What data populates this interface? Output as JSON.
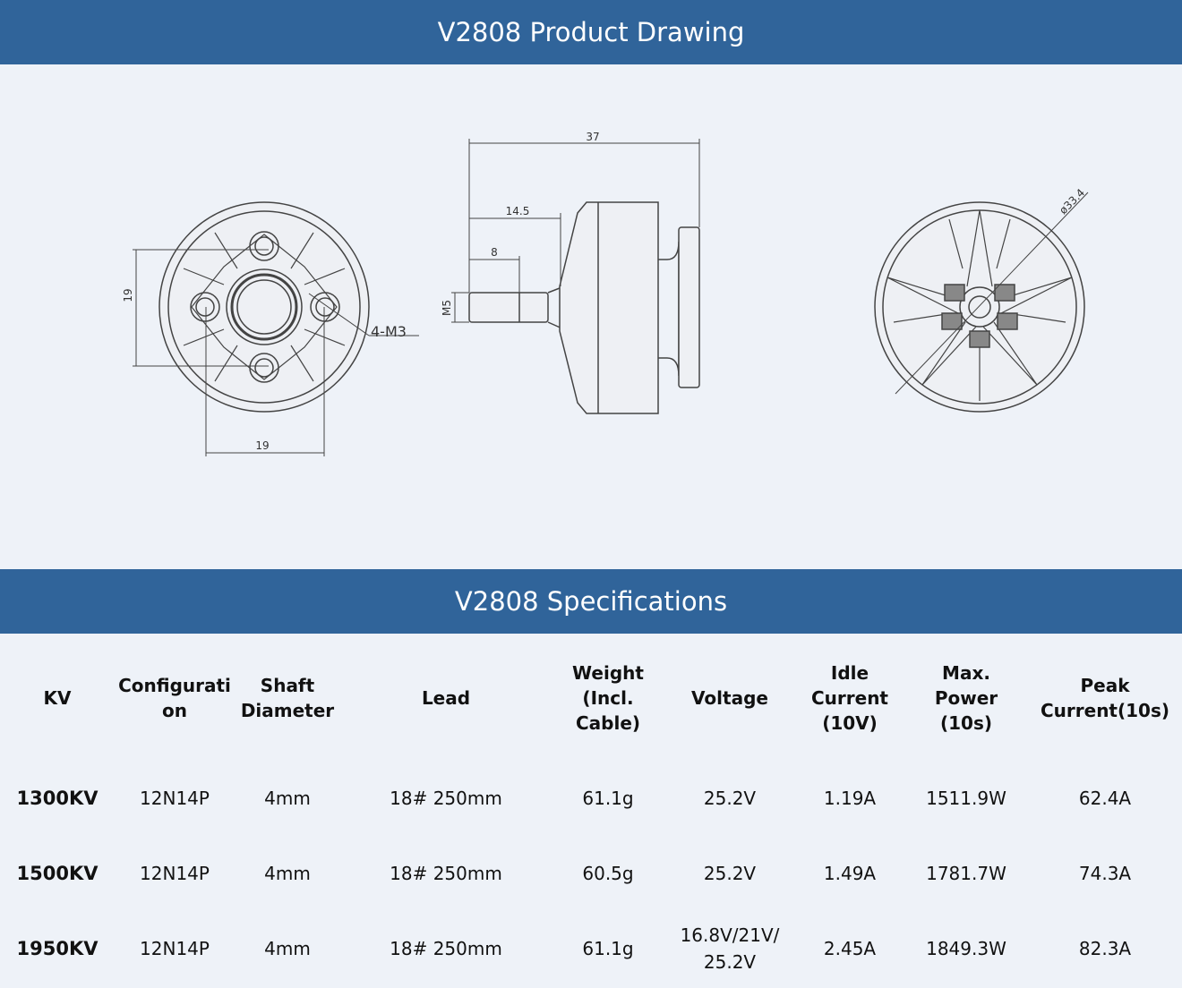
{
  "drawing_section": {
    "title": "V2808 Product Drawing"
  },
  "drawing_labels": {
    "front_height": "19",
    "front_width": "19",
    "mount_holes": "4-M3",
    "total_length": "37",
    "shaft_length": "14.5",
    "thread_length": "8",
    "thread_size": "M5",
    "diameter": "ø33.4"
  },
  "spec_section": {
    "title": "V2808 Specifications"
  },
  "table": {
    "headers": [
      "KV",
      "Configurati\non",
      "Shaft\nDiameter",
      "Lead",
      "Weight\n(Incl.\nCable)",
      "Voltage",
      "Idle\nCurrent\n(10V)",
      "Max.\nPower\n(10s)",
      "Peak\nCurrent(10s)"
    ],
    "rows": [
      [
        "1300KV",
        "12N14P",
        "4mm",
        "18# 250mm",
        "61.1g",
        "25.2V",
        "1.19A",
        "1511.9W",
        "62.4A"
      ],
      [
        "1500KV",
        "12N14P",
        "4mm",
        "18# 250mm",
        "60.5g",
        "25.2V",
        "1.49A",
        "1781.7W",
        "74.3A"
      ],
      [
        "1950KV",
        "12N14P",
        "4mm",
        "18# 250mm",
        "61.1g",
        "16.8V/21V/\n25.2V",
        "2.45A",
        "1849.3W",
        "82.3A"
      ]
    ]
  },
  "colors": {
    "banner": "#30649a",
    "background": "#eef2f8"
  }
}
